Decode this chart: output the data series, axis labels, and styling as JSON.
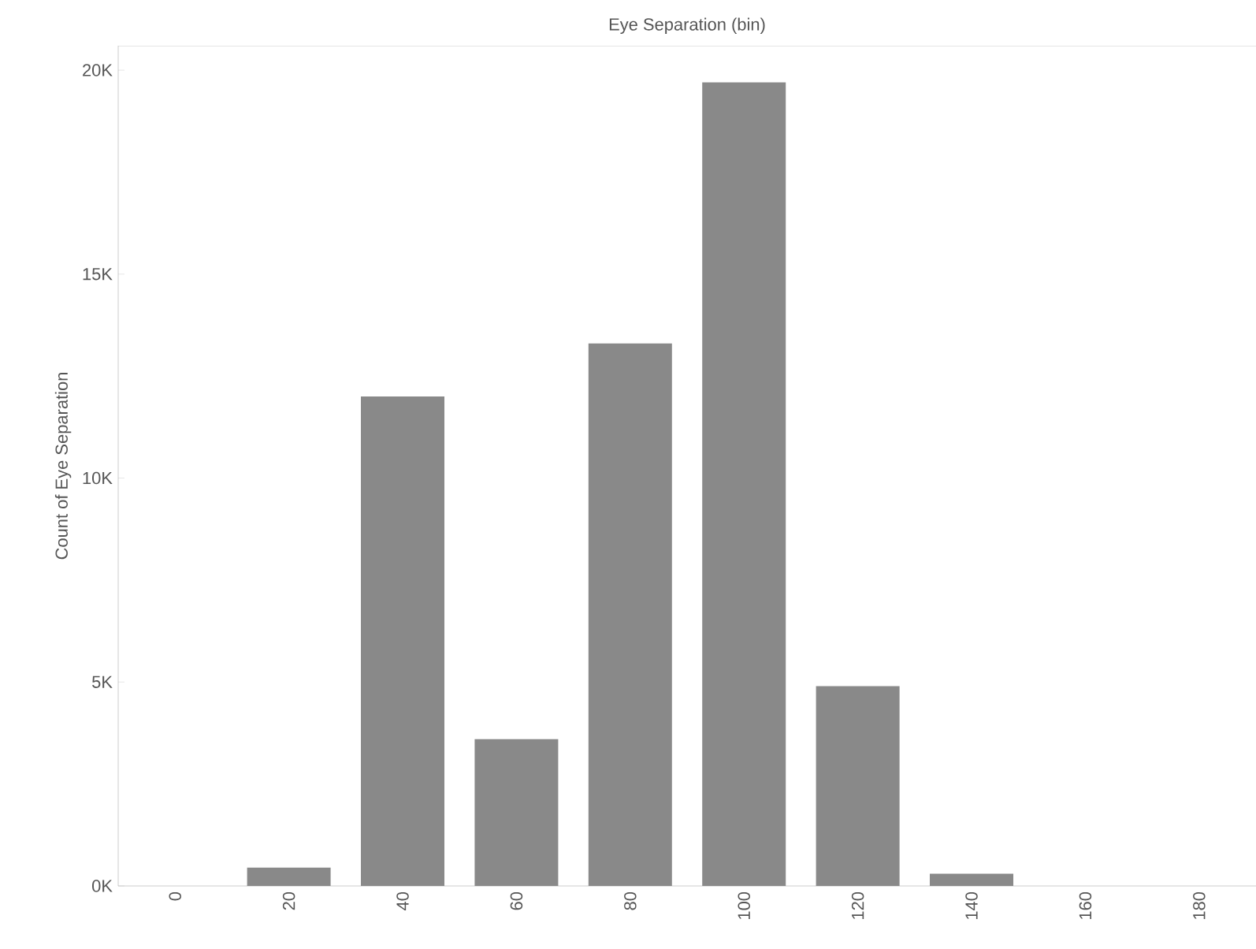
{
  "chart_data": {
    "type": "bar",
    "title": "Eye Separation (bin)",
    "ylabel": "Count of Eye Separation",
    "categories": [
      "0",
      "20",
      "40",
      "60",
      "80",
      "100",
      "120",
      "140",
      "160",
      "180"
    ],
    "values": [
      0,
      450,
      12000,
      3600,
      13300,
      19700,
      4900,
      300,
      0,
      0
    ],
    "color": "#898989",
    "ylim": [
      0,
      20600
    ],
    "yticks": [
      {
        "value": 0,
        "label": "0K"
      },
      {
        "value": 5000,
        "label": "5K"
      },
      {
        "value": 10000,
        "label": "10K"
      },
      {
        "value": 15000,
        "label": "15K"
      },
      {
        "value": 20000,
        "label": "20K"
      }
    ],
    "grid": false
  }
}
